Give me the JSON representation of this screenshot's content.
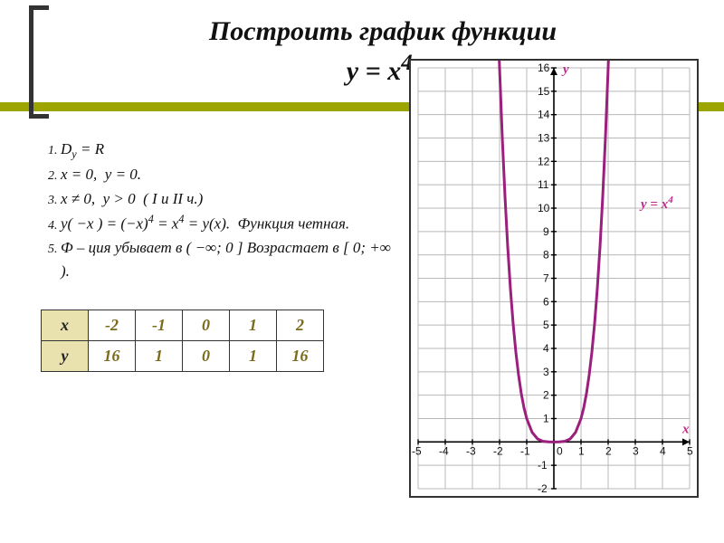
{
  "title_line1": "Построить график функции",
  "title_line2": "y = x<sup>4</sup>.",
  "properties": [
    "D<sub>y</sub> = R",
    "x = 0,&nbsp;&nbsp;y = 0.",
    "x ≠ 0,&nbsp;&nbsp;y &gt; 0&nbsp;&nbsp;( I  и  II ч.)",
    "y( −x ) = (−x)<sup>4</sup> = x<sup>4</sup> = y(x).&nbsp;&nbsp;Функция  четная.",
    "Ф – ция  убывает  в  ( −∞; 0 ]  Возрастает  в  [ 0; +∞ )."
  ],
  "table": {
    "headers": [
      "x",
      "-2",
      "-1",
      "0",
      "1",
      "2"
    ],
    "row_label": "y",
    "row_values": [
      "16",
      "1",
      "0",
      "1",
      "16"
    ]
  },
  "chart": {
    "type": "line",
    "curve_color": "#9b1f7d",
    "grid_color": "#b8b8b8",
    "axis_color": "#000000",
    "background": "#ffffff",
    "x_range": [
      -5,
      5
    ],
    "y_range": [
      -2,
      16
    ],
    "x_ticks": [
      -5,
      -4,
      -3,
      -2,
      -1,
      0,
      1,
      2,
      3,
      4,
      5
    ],
    "y_ticks": [
      -2,
      -1,
      1,
      2,
      3,
      4,
      5,
      6,
      7,
      8,
      9,
      10,
      11,
      12,
      13,
      14,
      15,
      16
    ],
    "y_label": "y",
    "x_label": "x",
    "curve_label_text": "y = x",
    "curve_label_sup": "4",
    "points": [
      [
        -2.05,
        17.7
      ],
      [
        -2.0,
        16.0
      ],
      [
        -1.9,
        13.03
      ],
      [
        -1.8,
        10.5
      ],
      [
        -1.7,
        8.35
      ],
      [
        -1.6,
        6.55
      ],
      [
        -1.5,
        5.06
      ],
      [
        -1.4,
        3.84
      ],
      [
        -1.3,
        2.86
      ],
      [
        -1.2,
        2.07
      ],
      [
        -1.1,
        1.46
      ],
      [
        -1.0,
        1.0
      ],
      [
        -0.8,
        0.41
      ],
      [
        -0.6,
        0.13
      ],
      [
        -0.4,
        0.026
      ],
      [
        -0.2,
        0.0016
      ],
      [
        0,
        0
      ],
      [
        0.2,
        0.0016
      ],
      [
        0.4,
        0.026
      ],
      [
        0.6,
        0.13
      ],
      [
        0.8,
        0.41
      ],
      [
        1.0,
        1.0
      ],
      [
        1.1,
        1.46
      ],
      [
        1.2,
        2.07
      ],
      [
        1.3,
        2.86
      ],
      [
        1.4,
        3.84
      ],
      [
        1.5,
        5.06
      ],
      [
        1.6,
        6.55
      ],
      [
        1.7,
        8.35
      ],
      [
        1.8,
        10.5
      ],
      [
        1.9,
        13.03
      ],
      [
        2.0,
        16.0
      ],
      [
        2.05,
        17.7
      ]
    ],
    "line_width": 3
  },
  "colors": {
    "accent": "#9ca400",
    "table_header_bg": "#e9e1ae",
    "table_value": "#7a6a1a",
    "label_pink": "#c02a8a"
  }
}
